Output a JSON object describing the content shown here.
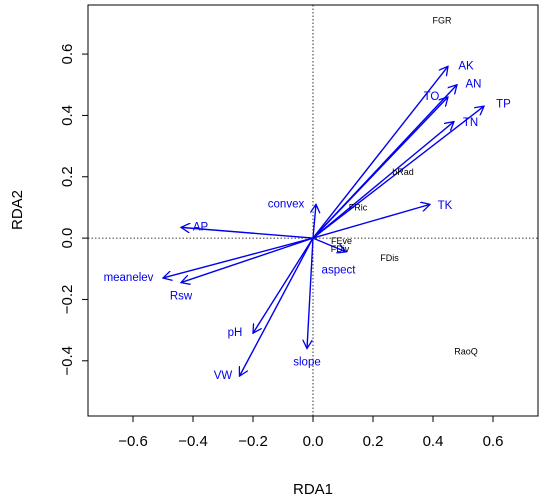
{
  "chart_data": {
    "type": "scatter",
    "title": "",
    "xlabel": "RDA1",
    "ylabel": "RDA2",
    "xlim": [
      -0.75,
      0.75
    ],
    "ylim": [
      -0.58,
      0.76
    ],
    "xticks": [
      -0.6,
      -0.4,
      -0.2,
      0.0,
      0.2,
      0.4,
      0.6
    ],
    "yticks": [
      -0.4,
      -0.2,
      0.0,
      0.2,
      0.4,
      0.6
    ],
    "tick_labels_x": [
      "−0.6",
      "−0.4",
      "−0.2",
      "0.0",
      "0.2",
      "0.4",
      "0.6"
    ],
    "tick_labels_y": [
      "−0.4",
      "−0.2",
      "0.0",
      "0.2",
      "0.4",
      "0.6"
    ],
    "reference_lines": {
      "x": 0,
      "y": 0,
      "style": "dotted"
    },
    "arrow_color": "#0000ee",
    "site_color": "#000000",
    "arrows": [
      {
        "name": "AK",
        "x": 0.45,
        "y": 0.56,
        "lx": 0.51,
        "ly": 0.56
      },
      {
        "name": "AN",
        "x": 0.48,
        "y": 0.5,
        "lx": 0.535,
        "ly": 0.5
      },
      {
        "name": "TO",
        "x": 0.45,
        "y": 0.46,
        "lx": 0.395,
        "ly": 0.46
      },
      {
        "name": "TP",
        "x": 0.57,
        "y": 0.43,
        "lx": 0.635,
        "ly": 0.435
      },
      {
        "name": "TN",
        "x": 0.47,
        "y": 0.38,
        "lx": 0.525,
        "ly": 0.375
      },
      {
        "name": "TK",
        "x": 0.39,
        "y": 0.11,
        "lx": 0.44,
        "ly": 0.105
      },
      {
        "name": "convex",
        "x": 0.01,
        "y": 0.11,
        "lx": -0.09,
        "ly": 0.11
      },
      {
        "name": "AP",
        "x": -0.44,
        "y": 0.035,
        "lx": -0.375,
        "ly": 0.035
      },
      {
        "name": "meanelev",
        "x": -0.5,
        "y": -0.13,
        "lx": -0.615,
        "ly": -0.13
      },
      {
        "name": "Rsw",
        "x": -0.44,
        "y": -0.145,
        "lx": -0.44,
        "ly": -0.19
      },
      {
        "name": "pH",
        "x": -0.2,
        "y": -0.31,
        "lx": -0.26,
        "ly": -0.31
      },
      {
        "name": "VW",
        "x": -0.245,
        "y": -0.45,
        "lx": -0.3,
        "ly": -0.45
      },
      {
        "name": "slope",
        "x": -0.02,
        "y": -0.36,
        "lx": -0.02,
        "ly": -0.405
      },
      {
        "name": "aspect",
        "x": 0.11,
        "y": -0.045,
        "lx": 0.085,
        "ly": -0.105
      }
    ],
    "sites": [
      {
        "name": "FGR",
        "x": 0.43,
        "y": 0.71
      },
      {
        "name": "bRad",
        "x": 0.3,
        "y": 0.215
      },
      {
        "name": "FRic",
        "x": 0.15,
        "y": 0.1
      },
      {
        "name": "FEve",
        "x": 0.095,
        "y": -0.01
      },
      {
        "name": "FDiv",
        "x": 0.09,
        "y": -0.035
      },
      {
        "name": "FDis",
        "x": 0.255,
        "y": -0.065
      },
      {
        "name": "RaoQ",
        "x": 0.51,
        "y": -0.37
      }
    ]
  }
}
